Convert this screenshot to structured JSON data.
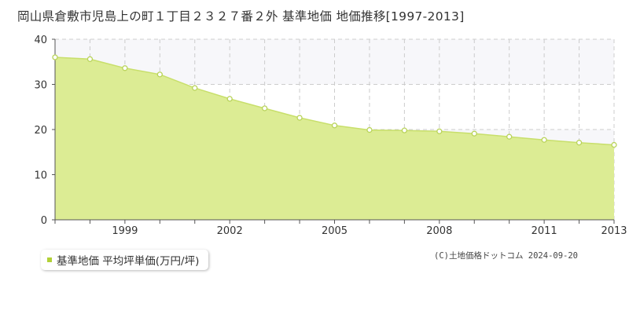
{
  "title": "岡山県倉敷市児島上の町１丁目２３２７番２外 基準地価 地価推移[1997-2013]",
  "legend": {
    "label": "基準地価 平均坪単価(万円/坪)"
  },
  "copyright": "(C)土地価格ドットコム 2024-09-20",
  "colors": {
    "fill": "#dcec94",
    "line": "#c8df6b",
    "point_fill": "#ffffff",
    "point_stroke": "#b9d35a",
    "band": "#f7f7fa",
    "grid": "#cccccc",
    "axis": "#555555",
    "legend_swatch": "#b2d137"
  },
  "chart_data": {
    "type": "area",
    "x": [
      1997,
      1998,
      1999,
      2000,
      2001,
      2002,
      2003,
      2004,
      2005,
      2006,
      2007,
      2008,
      2009,
      2010,
      2011,
      2012,
      2013
    ],
    "series": [
      {
        "name": "基準地価 平均坪単価(万円/坪)",
        "values": [
          36.0,
          35.6,
          33.6,
          32.2,
          29.2,
          26.8,
          24.7,
          22.6,
          20.9,
          19.9,
          19.8,
          19.6,
          19.1,
          18.4,
          17.7,
          17.1,
          16.6
        ]
      }
    ],
    "xlim": [
      1997,
      2013
    ],
    "ylim": [
      0,
      40
    ],
    "yticks": [
      0,
      10,
      20,
      30,
      40
    ],
    "xticks": [
      1999,
      2002,
      2005,
      2008,
      2011,
      2013
    ],
    "xlabel": "",
    "ylabel": "",
    "grid": true
  }
}
